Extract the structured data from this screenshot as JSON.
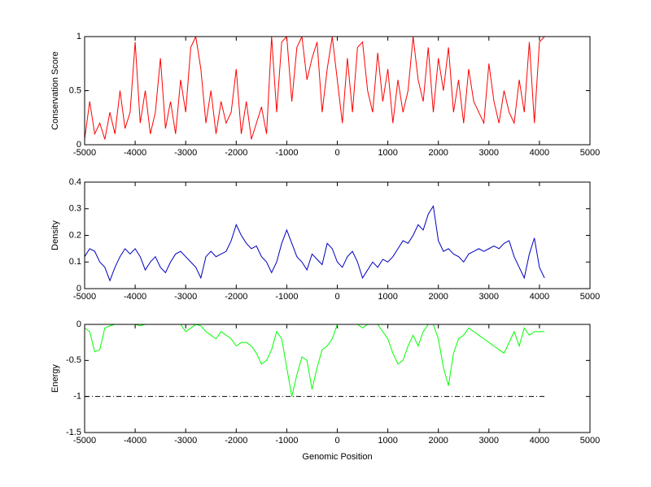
{
  "chart_data": [
    {
      "type": "line",
      "y_label": "Conservation Score",
      "xlim": [
        -5000,
        5000
      ],
      "xticks": [
        -5000,
        -4000,
        -3000,
        -2000,
        -1000,
        0,
        1000,
        2000,
        3000,
        4000,
        5000
      ],
      "ylim": [
        0,
        1
      ],
      "yticks": [
        0,
        0.5,
        1
      ],
      "x": [
        -5000,
        -4900,
        -4800,
        -4700,
        -4600,
        -4500,
        -4400,
        -4300,
        -4200,
        -4100,
        -4000,
        -3900,
        -3800,
        -3700,
        -3600,
        -3500,
        -3400,
        -3300,
        -3200,
        -3100,
        -3000,
        -2900,
        -2800,
        -2700,
        -2600,
        -2500,
        -2400,
        -2300,
        -2200,
        -2100,
        -2000,
        -1900,
        -1800,
        -1700,
        -1600,
        -1500,
        -1400,
        -1300,
        -1200,
        -1100,
        -1000,
        -900,
        -800,
        -700,
        -600,
        -500,
        -400,
        -300,
        -200,
        -100,
        0,
        100,
        200,
        300,
        400,
        500,
        600,
        700,
        800,
        900,
        1000,
        1100,
        1200,
        1300,
        1400,
        1500,
        1600,
        1700,
        1800,
        1900,
        2000,
        2100,
        2200,
        2300,
        2400,
        2500,
        2600,
        2700,
        2800,
        2900,
        3000,
        3100,
        3200,
        3300,
        3400,
        3500,
        3600,
        3700,
        3800,
        3900,
        4000,
        4100
      ],
      "series": [
        {
          "color": "#ff0000",
          "values": [
            0.05,
            0.4,
            0.1,
            0.2,
            0.05,
            0.3,
            0.1,
            0.5,
            0.15,
            0.3,
            0.95,
            0.2,
            0.5,
            0.1,
            0.3,
            0.8,
            0.15,
            0.4,
            0.1,
            0.6,
            0.3,
            0.9,
            1,
            0.7,
            0.2,
            0.5,
            0.1,
            0.4,
            0.2,
            0.3,
            0.7,
            0.1,
            0.4,
            0.05,
            0.2,
            0.35,
            0.1,
            1,
            0.3,
            0.95,
            1,
            0.4,
            0.9,
            1,
            0.6,
            0.8,
            0.95,
            0.3,
            0.7,
            1,
            0.6,
            0.2,
            0.8,
            0.3,
            0.9,
            0.95,
            0.5,
            0.3,
            0.85,
            0.4,
            0.7,
            0.2,
            0.6,
            0.3,
            0.5,
            1,
            0.6,
            0.4,
            0.9,
            0.3,
            0.8,
            0.5,
            0.9,
            0.3,
            0.6,
            0.2,
            0.7,
            0.4,
            0.3,
            0.2,
            0.75,
            0.4,
            0.2,
            0.5,
            0.3,
            0.2,
            0.6,
            0.3,
            0.95,
            0.2,
            0.95,
            1
          ]
        }
      ]
    },
    {
      "type": "line",
      "y_label": "Density",
      "xlim": [
        -5000,
        5000
      ],
      "xticks": [
        -5000,
        -4000,
        -3000,
        -2000,
        -1000,
        0,
        1000,
        2000,
        3000,
        4000,
        5000
      ],
      "ylim": [
        0,
        0.4
      ],
      "yticks": [
        0,
        0.1,
        0.2,
        0.3,
        0.4
      ],
      "x": [
        -5000,
        -4900,
        -4800,
        -4700,
        -4600,
        -4500,
        -4400,
        -4300,
        -4200,
        -4100,
        -4000,
        -3900,
        -3800,
        -3700,
        -3600,
        -3500,
        -3400,
        -3300,
        -3200,
        -3100,
        -3000,
        -2900,
        -2800,
        -2700,
        -2600,
        -2500,
        -2400,
        -2300,
        -2200,
        -2100,
        -2000,
        -1900,
        -1800,
        -1700,
        -1600,
        -1500,
        -1400,
        -1300,
        -1200,
        -1100,
        -1000,
        -900,
        -800,
        -700,
        -600,
        -500,
        -400,
        -300,
        -200,
        -100,
        0,
        100,
        200,
        300,
        400,
        500,
        600,
        700,
        800,
        900,
        1000,
        1100,
        1200,
        1300,
        1400,
        1500,
        1600,
        1700,
        1800,
        1900,
        2000,
        2100,
        2200,
        2300,
        2400,
        2500,
        2600,
        2700,
        2800,
        2900,
        3000,
        3100,
        3200,
        3300,
        3400,
        3500,
        3600,
        3700,
        3800,
        3900,
        4000,
        4100
      ],
      "series": [
        {
          "color": "#0000c0",
          "values": [
            0.12,
            0.15,
            0.14,
            0.1,
            0.08,
            0.03,
            0.08,
            0.12,
            0.15,
            0.13,
            0.15,
            0.12,
            0.07,
            0.1,
            0.12,
            0.08,
            0.06,
            0.1,
            0.13,
            0.14,
            0.12,
            0.1,
            0.08,
            0.04,
            0.12,
            0.14,
            0.12,
            0.13,
            0.14,
            0.18,
            0.24,
            0.2,
            0.17,
            0.15,
            0.16,
            0.12,
            0.1,
            0.06,
            0.1,
            0.17,
            0.22,
            0.17,
            0.12,
            0.1,
            0.07,
            0.13,
            0.11,
            0.09,
            0.17,
            0.15,
            0.1,
            0.08,
            0.12,
            0.14,
            0.1,
            0.04,
            0.07,
            0.1,
            0.08,
            0.11,
            0.1,
            0.12,
            0.15,
            0.18,
            0.17,
            0.2,
            0.24,
            0.22,
            0.28,
            0.31,
            0.18,
            0.14,
            0.15,
            0.13,
            0.12,
            0.1,
            0.13,
            0.14,
            0.15,
            0.14,
            0.15,
            0.16,
            0.15,
            0.17,
            0.18,
            0.12,
            0.08,
            0.04,
            0.13,
            0.19,
            0.08,
            0.04
          ]
        }
      ]
    },
    {
      "type": "line",
      "y_label": "Energy",
      "x_label": "Genomic Position",
      "xlim": [
        -5000,
        5000
      ],
      "xticks": [
        -5000,
        -4000,
        -3000,
        -2000,
        -1000,
        0,
        1000,
        2000,
        3000,
        4000,
        5000
      ],
      "ylim": [
        -1.5,
        0
      ],
      "yticks": [
        -1.5,
        -1,
        -0.5,
        0
      ],
      "x": [
        -5000,
        -4900,
        -4800,
        -4700,
        -4600,
        -4500,
        -4400,
        -4300,
        -4200,
        -4100,
        -4000,
        -3900,
        -3800,
        -3700,
        -3600,
        -3500,
        -3400,
        -3300,
        -3200,
        -3100,
        -3000,
        -2900,
        -2800,
        -2700,
        -2600,
        -2500,
        -2400,
        -2300,
        -2200,
        -2100,
        -2000,
        -1900,
        -1800,
        -1700,
        -1600,
        -1500,
        -1400,
        -1300,
        -1200,
        -1100,
        -1000,
        -900,
        -800,
        -700,
        -600,
        -500,
        -400,
        -300,
        -200,
        -100,
        0,
        100,
        200,
        300,
        400,
        500,
        600,
        700,
        800,
        900,
        1000,
        1100,
        1200,
        1300,
        1400,
        1500,
        1600,
        1700,
        1800,
        1900,
        2000,
        2100,
        2200,
        2300,
        2400,
        2500,
        2600,
        2700,
        2800,
        2900,
        3000,
        3100,
        3200,
        3300,
        3400,
        3500,
        3600,
        3700,
        3800,
        3900,
        4000,
        4100
      ],
      "series": [
        {
          "color": "#00ff00",
          "values": [
            -0.05,
            -0.1,
            -0.38,
            -0.35,
            -0.05,
            -0.02,
            0,
            0,
            0,
            0,
            0,
            -0.02,
            0,
            0,
            0,
            0,
            0,
            0,
            0,
            0,
            -0.1,
            -0.05,
            0,
            -0.02,
            -0.1,
            -0.15,
            -0.2,
            -0.1,
            -0.15,
            -0.2,
            -0.3,
            -0.25,
            -0.25,
            -0.3,
            -0.4,
            -0.55,
            -0.5,
            -0.35,
            -0.1,
            -0.2,
            -0.6,
            -1,
            -0.7,
            -0.45,
            -0.5,
            -0.9,
            -0.6,
            -0.35,
            -0.3,
            -0.2,
            0,
            0,
            0,
            0,
            0,
            -0.05,
            0,
            0,
            0,
            -0.1,
            -0.2,
            -0.4,
            -0.55,
            -0.5,
            -0.3,
            -0.15,
            -0.3,
            -0.1,
            0,
            0,
            -0.2,
            -0.6,
            -0.85,
            -0.4,
            -0.2,
            -0.15,
            -0.05,
            -0.1,
            -0.15,
            -0.2,
            -0.25,
            -0.3,
            -0.35,
            -0.4,
            -0.25,
            -0.1,
            -0.3,
            -0.05,
            -0.15,
            -0.1,
            -0.1,
            -0.1
          ]
        },
        {
          "color": "#000000",
          "style": "dash-dot",
          "x": [
            -5000,
            4100
          ],
          "values": [
            -1,
            -1
          ]
        }
      ]
    }
  ]
}
